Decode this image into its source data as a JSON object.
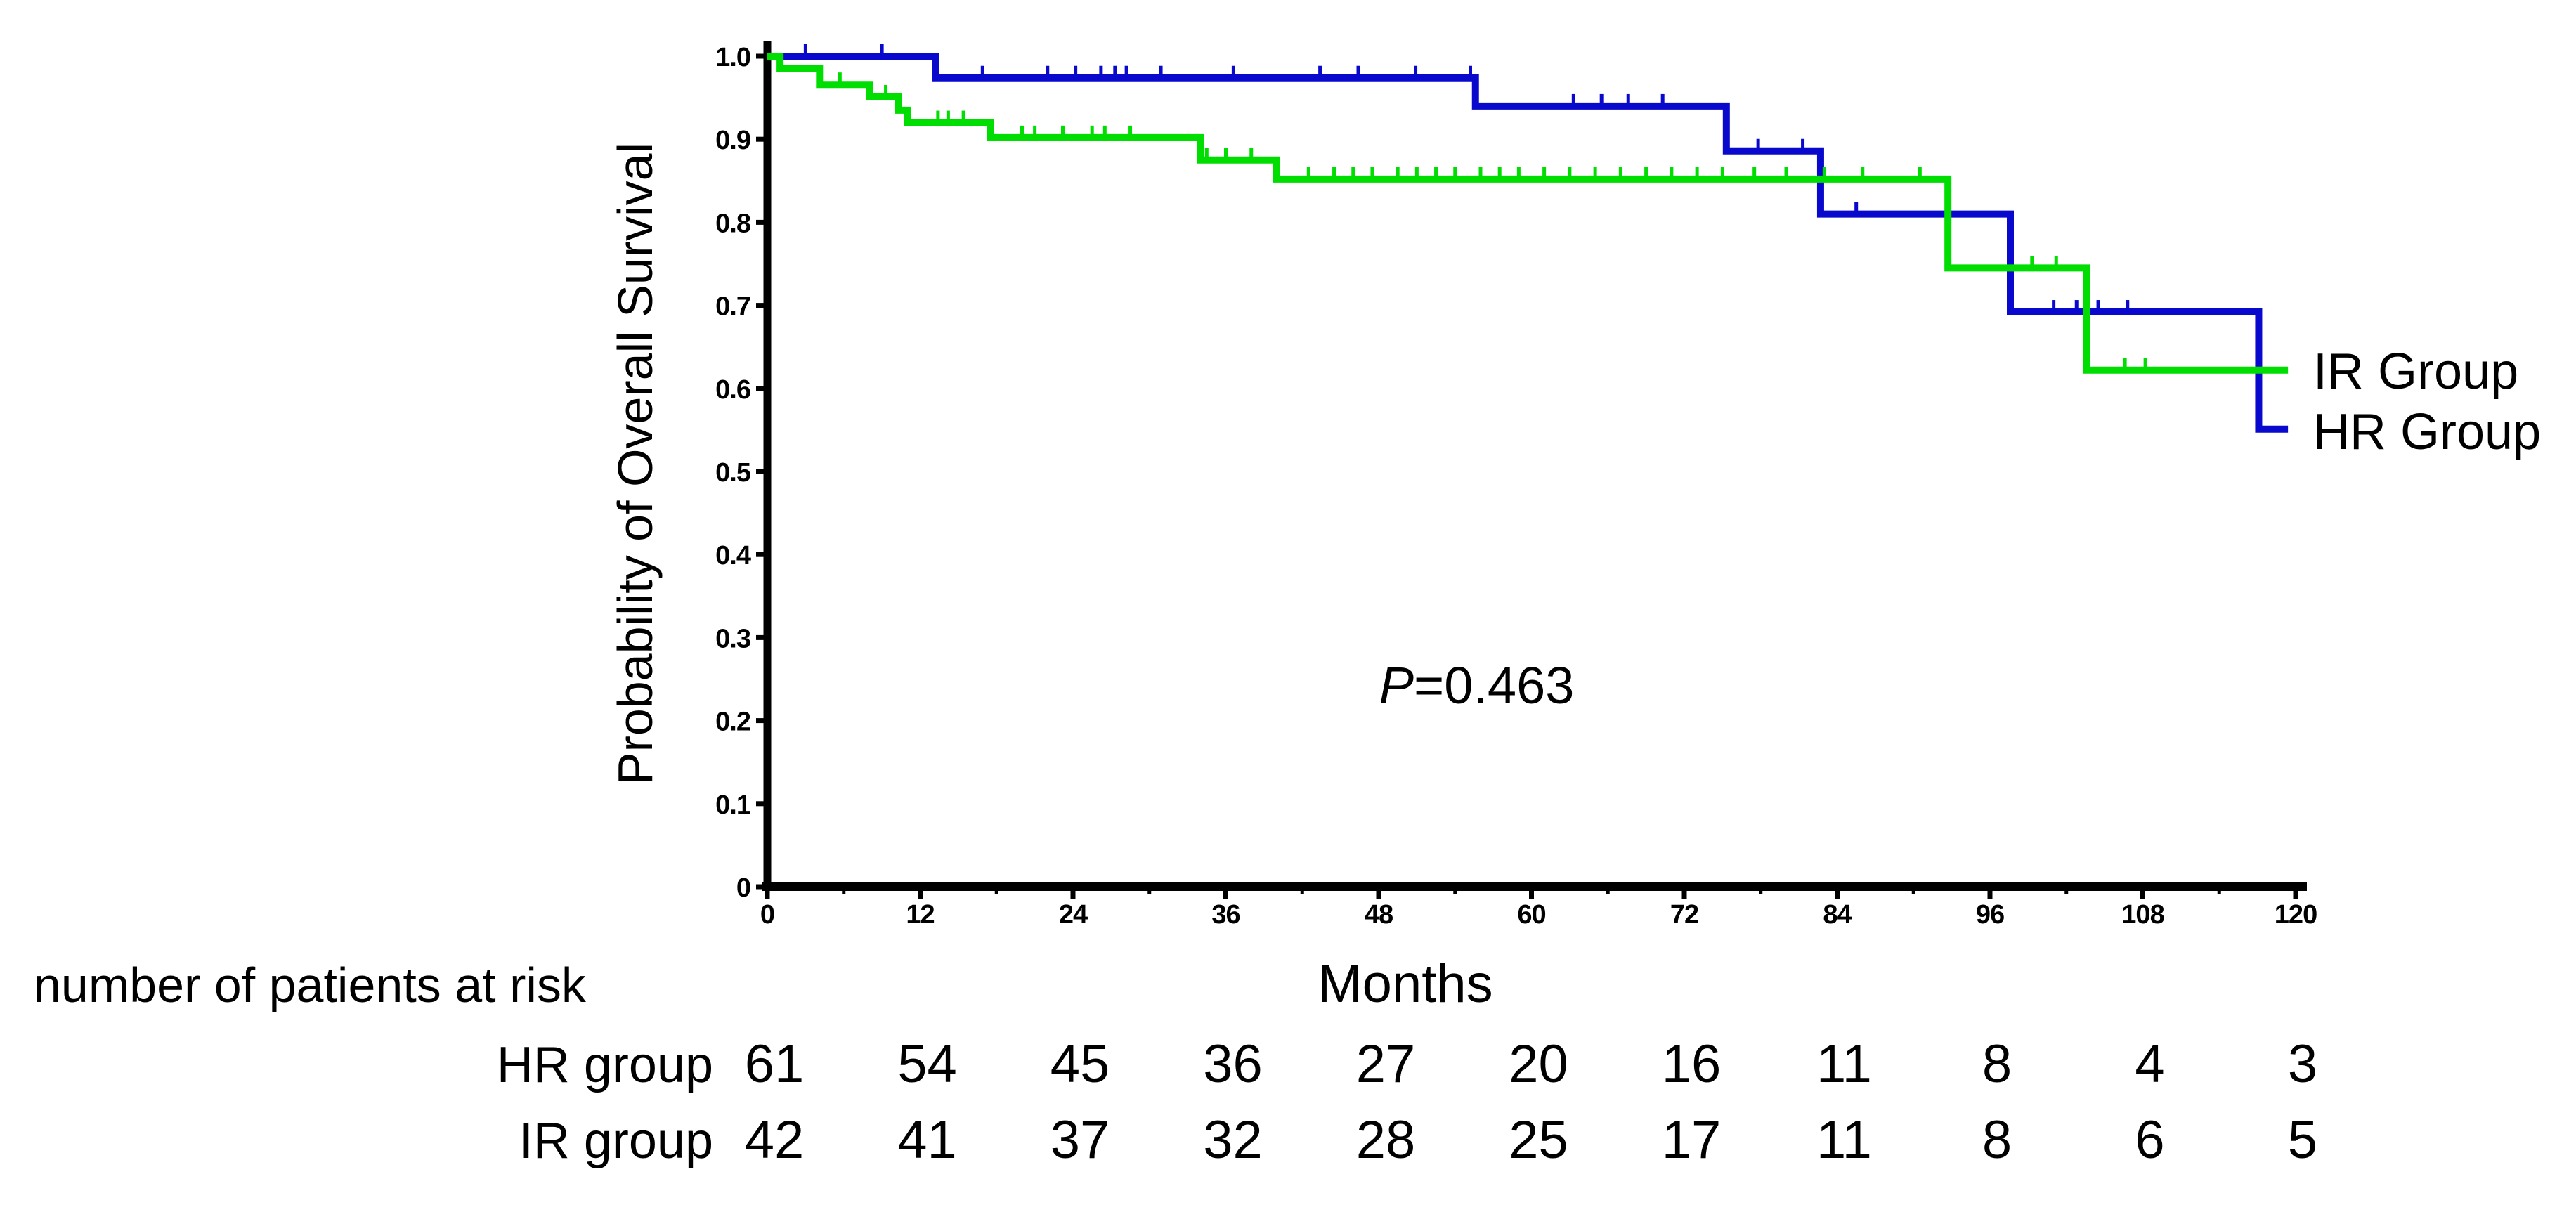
{
  "figure": {
    "axes": {
      "ylabel": "Probability of Overall Survival",
      "xlabel": "Months"
    },
    "annotation": {
      "p_symbol": "P",
      "p_rest": "=0.463"
    },
    "legend": {
      "items": [
        {
          "label": "IR Group",
          "color": "#00dd00"
        },
        {
          "label": "HR Group",
          "color": "#0909cd"
        }
      ]
    },
    "risk_table": {
      "title": "number of patients at risk",
      "rows": [
        {
          "label": "HR group",
          "values": [
            "61",
            "54",
            "45",
            "36",
            "27",
            "20",
            "16",
            "11",
            "8",
            "4",
            "3"
          ]
        },
        {
          "label": "IR group",
          "values": [
            "42",
            "41",
            "37",
            "32",
            "28",
            "25",
            "17",
            "11",
            "8",
            "6",
            "5"
          ]
        }
      ]
    }
  },
  "chart_data": {
    "type": "line",
    "subtype": "kaplan-meier-step",
    "title": "",
    "xlabel": "Months",
    "ylabel": "Probability of Overall Survival",
    "xlim": [
      0,
      120
    ],
    "ylim": [
      0,
      1.0
    ],
    "grid": false,
    "legend_position": "right-of-curve-ends",
    "p_value_text": "P=0.463",
    "x_ticks": [
      {
        "v": 0,
        "label": "0"
      },
      {
        "v": 12,
        "label": "12"
      },
      {
        "v": 24,
        "label": "24"
      },
      {
        "v": 36,
        "label": "36"
      },
      {
        "v": 48,
        "label": "48"
      },
      {
        "v": 60,
        "label": "60"
      },
      {
        "v": 72,
        "label": "72"
      },
      {
        "v": 84,
        "label": "84"
      },
      {
        "v": 96,
        "label": "96"
      },
      {
        "v": 108,
        "label": "108"
      },
      {
        "v": 120,
        "label": "120"
      }
    ],
    "x_minor_ticks": [
      6,
      18,
      30,
      42,
      54,
      66,
      78,
      90,
      102,
      114
    ],
    "y_ticks": [
      {
        "v": 1.0,
        "label": "1.0"
      },
      {
        "v": 0.9,
        "label": "0.9"
      },
      {
        "v": 0.8,
        "label": "0.8"
      },
      {
        "v": 0.7,
        "label": "0.7"
      },
      {
        "v": 0.6,
        "label": "0.6"
      },
      {
        "v": 0.5,
        "label": "0.5"
      },
      {
        "v": 0.4,
        "label": "0.4"
      },
      {
        "v": 0.3,
        "label": "0.3"
      },
      {
        "v": 0.2,
        "label": "0.2"
      },
      {
        "v": 0.1,
        "label": "0.1"
      },
      {
        "v": 0,
        "label": "0"
      }
    ],
    "series": [
      {
        "name": "HR Group",
        "color": "#0909cd",
        "n_at_risk_label": "HR group",
        "end_month": 119.4,
        "steps": [
          [
            0,
            1.0
          ],
          [
            13.2,
            0.974
          ],
          [
            55.6,
            0.94
          ],
          [
            75.3,
            0.886
          ],
          [
            82.7,
            0.81
          ],
          [
            97.6,
            0.692
          ],
          [
            117.1,
            0.551
          ]
        ],
        "censors": [
          [
            3,
            1.0
          ],
          [
            9,
            1.0
          ],
          [
            16.9,
            0.974
          ],
          [
            22,
            0.974
          ],
          [
            24.2,
            0.974
          ],
          [
            26.2,
            0.974
          ],
          [
            27.3,
            0.974
          ],
          [
            28.2,
            0.974
          ],
          [
            30.9,
            0.974
          ],
          [
            36.6,
            0.974
          ],
          [
            43.4,
            0.974
          ],
          [
            46.4,
            0.974
          ],
          [
            50.9,
            0.974
          ],
          [
            55.2,
            0.974
          ],
          [
            63.3,
            0.94
          ],
          [
            65.5,
            0.94
          ],
          [
            67.6,
            0.94
          ],
          [
            70.3,
            0.94
          ],
          [
            77.8,
            0.886
          ],
          [
            81.3,
            0.886
          ],
          [
            85.5,
            0.81
          ],
          [
            101,
            0.692
          ],
          [
            102.8,
            0.692
          ],
          [
            104.5,
            0.692
          ],
          [
            106.8,
            0.692
          ]
        ]
      },
      {
        "name": "IR Group",
        "color": "#00dd00",
        "n_at_risk_label": "IR group",
        "end_month": 119.4,
        "steps": [
          [
            0,
            1.0
          ],
          [
            1,
            0.985
          ],
          [
            4.1,
            0.966
          ],
          [
            8,
            0.951
          ],
          [
            10.3,
            0.935
          ],
          [
            11,
            0.92
          ],
          [
            17.5,
            0.902
          ],
          [
            34,
            0.875
          ],
          [
            40,
            0.852
          ],
          [
            92.7,
            0.745
          ],
          [
            103.6,
            0.622
          ]
        ],
        "censors": [
          [
            5.7,
            0.966
          ],
          [
            9.3,
            0.951
          ],
          [
            13.4,
            0.92
          ],
          [
            14.2,
            0.92
          ],
          [
            15.4,
            0.92
          ],
          [
            20,
            0.902
          ],
          [
            21,
            0.902
          ],
          [
            23.2,
            0.902
          ],
          [
            25.5,
            0.902
          ],
          [
            26.5,
            0.902
          ],
          [
            28.5,
            0.902
          ],
          [
            34.5,
            0.875
          ],
          [
            36,
            0.875
          ],
          [
            38,
            0.875
          ],
          [
            42.5,
            0.852
          ],
          [
            44.5,
            0.852
          ],
          [
            46,
            0.852
          ],
          [
            47.5,
            0.852
          ],
          [
            49.5,
            0.852
          ],
          [
            51,
            0.852
          ],
          [
            52.5,
            0.852
          ],
          [
            54,
            0.852
          ],
          [
            56,
            0.852
          ],
          [
            57.5,
            0.852
          ],
          [
            59,
            0.852
          ],
          [
            61,
            0.852
          ],
          [
            63,
            0.852
          ],
          [
            65,
            0.852
          ],
          [
            67,
            0.852
          ],
          [
            69,
            0.852
          ],
          [
            71,
            0.852
          ],
          [
            73,
            0.852
          ],
          [
            75,
            0.852
          ],
          [
            77.5,
            0.852
          ],
          [
            80,
            0.852
          ],
          [
            83,
            0.852
          ],
          [
            86,
            0.852
          ],
          [
            90.5,
            0.852
          ],
          [
            99.3,
            0.745
          ],
          [
            101.2,
            0.745
          ],
          [
            106.6,
            0.622
          ],
          [
            108.2,
            0.622
          ]
        ]
      }
    ]
  }
}
